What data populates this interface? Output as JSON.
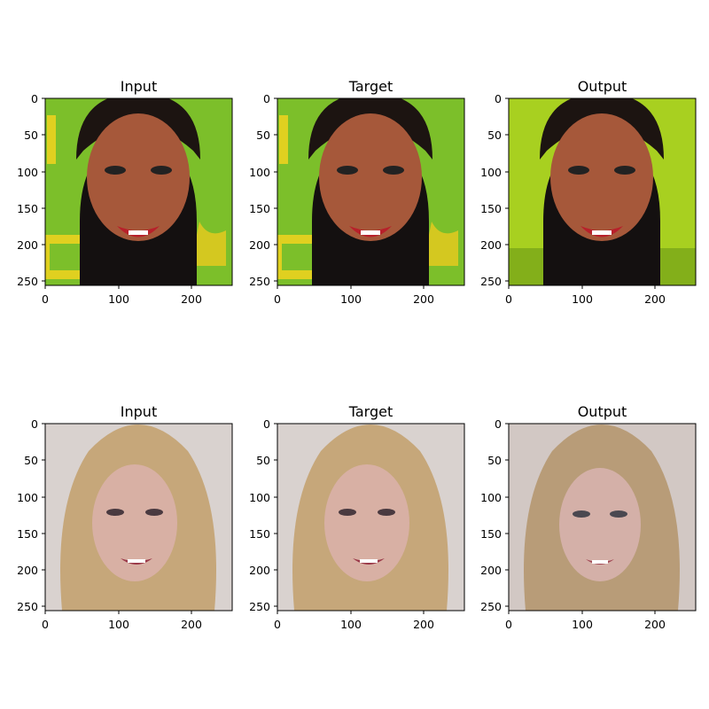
{
  "figure": {
    "panels": [
      {
        "title": "Input",
        "content": "photo of a smiling woman with short dark hair in front of a green and yellow backdrop",
        "background": "#7cbf2a"
      },
      {
        "title": "Target",
        "content": "photo of a smiling woman with short dark hair in front of a green and yellow backdrop",
        "background": "#7cbf2a"
      },
      {
        "title": "Output",
        "content": "generated face of a smiling woman with short dark hair on a blurred green background",
        "background": "#a8d020"
      },
      {
        "title": "Input",
        "content": "photo of a smiling woman with long blonde hair on a light gray background",
        "background": "#d9d2cf"
      },
      {
        "title": "Target",
        "content": "photo of a smiling woman with long blonde hair on a light gray background",
        "background": "#d9d2cf"
      },
      {
        "title": "Output",
        "content": "generated face of a smiling woman with long blonde hair on a light gray background",
        "background": "#d2c8c4"
      }
    ],
    "x_ticks": [
      "0",
      "100",
      "200"
    ],
    "y_ticks": [
      "0",
      "50",
      "100",
      "150",
      "200",
      "250"
    ],
    "colors": {
      "skin_dark": "#a6583a",
      "hair_dark": "#1c1411",
      "skin_light": "#d8b0a4",
      "hair_blonde": "#c6a77a",
      "lips": "#b8202a"
    }
  }
}
